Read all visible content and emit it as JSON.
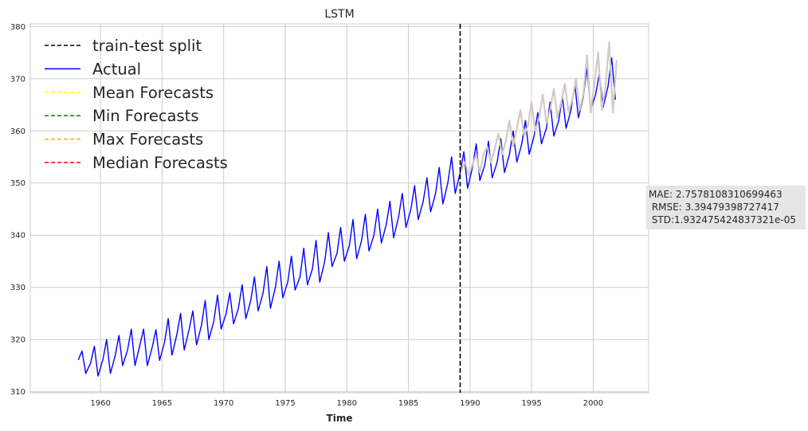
{
  "chart_data": {
    "type": "line",
    "title": "LSTM",
    "xlabel": "Time",
    "ylabel": "",
    "xlim": [
      1954.3,
      2004.5
    ],
    "ylim": [
      309.8,
      380.5
    ],
    "xticks": [
      "1960",
      "1965",
      "1970",
      "1975",
      "1980",
      "1985",
      "1990",
      "1995",
      "2000"
    ],
    "yticks": [
      "310",
      "320",
      "330",
      "340",
      "350",
      "360",
      "370",
      "380"
    ],
    "grid": true,
    "legend_position": "top-left",
    "legend": [
      {
        "label": "train-test split",
        "color": "#000000",
        "style": "dashed"
      },
      {
        "label": "Actual",
        "color": "#0000ff",
        "style": "solid"
      },
      {
        "label": "Mean Forecasts",
        "color": "#ffff00",
        "style": "dashed"
      },
      {
        "label": "Min Forecasts",
        "color": "#008000",
        "style": "dashed"
      },
      {
        "label": "Max Forecasts",
        "color": "#ffa500",
        "style": "dashed"
      },
      {
        "label": "Median Forecasts",
        "color": "#ff0000",
        "style": "dashed"
      }
    ],
    "split_x": 1989.2,
    "series": [
      {
        "name": "Actual",
        "color": "#0000ff",
        "x": [
          1958.2,
          1958.5,
          1958.8,
          1959.2,
          1959.5,
          1959.8,
          1960.2,
          1960.5,
          1960.8,
          1961.2,
          1961.5,
          1961.8,
          1962.2,
          1962.5,
          1962.8,
          1963.2,
          1963.5,
          1963.8,
          1964.2,
          1964.5,
          1964.8,
          1965.2,
          1965.5,
          1965.8,
          1966.2,
          1966.5,
          1966.8,
          1967.2,
          1967.5,
          1967.8,
          1968.2,
          1968.5,
          1968.8,
          1969.2,
          1969.5,
          1969.8,
          1970.2,
          1970.5,
          1970.8,
          1971.2,
          1971.5,
          1971.8,
          1972.2,
          1972.5,
          1972.8,
          1973.2,
          1973.5,
          1973.8,
          1974.2,
          1974.5,
          1974.8,
          1975.2,
          1975.5,
          1975.8,
          1976.2,
          1976.5,
          1976.8,
          1977.2,
          1977.5,
          1977.8,
          1978.2,
          1978.5,
          1978.8,
          1979.2,
          1979.5,
          1979.8,
          1980.2,
          1980.5,
          1980.8,
          1981.2,
          1981.5,
          1981.8,
          1982.2,
          1982.5,
          1982.8,
          1983.2,
          1983.5,
          1983.8,
          1984.2,
          1984.5,
          1984.8,
          1985.2,
          1985.5,
          1985.8,
          1986.2,
          1986.5,
          1986.8,
          1987.2,
          1987.5,
          1987.8,
          1988.2,
          1988.5,
          1988.8,
          1989.2,
          1989.5,
          1989.8,
          1990.2,
          1990.5,
          1990.8,
          1991.2,
          1991.5,
          1991.8,
          1992.2,
          1992.5,
          1992.8,
          1993.2,
          1993.5,
          1993.8,
          1994.2,
          1994.5,
          1994.8,
          1995.2,
          1995.5,
          1995.8,
          1996.2,
          1996.5,
          1996.8,
          1997.2,
          1997.5,
          1997.8,
          1998.2,
          1998.5,
          1998.8,
          1999.2,
          1999.5,
          1999.8,
          2000.2,
          2000.5,
          2000.8,
          2001.2,
          2001.5,
          2001.8
        ],
        "values": [
          316.1,
          317.8,
          313.5,
          315.5,
          318.7,
          313.0,
          316.2,
          320.0,
          313.5,
          317.0,
          320.8,
          315.0,
          318.0,
          322.0,
          315.0,
          319.0,
          322.0,
          315.0,
          318.5,
          321.9,
          316.0,
          319.5,
          324.0,
          317.0,
          321.0,
          325.0,
          318.0,
          322.0,
          325.5,
          319.0,
          322.8,
          327.5,
          320.0,
          323.5,
          328.5,
          322.0,
          325.0,
          329.0,
          323.0,
          326.0,
          330.5,
          324.0,
          327.5,
          332.0,
          325.5,
          329.0,
          334.0,
          326.0,
          330.0,
          335.0,
          328.0,
          331.0,
          336.0,
          329.5,
          332.0,
          337.5,
          330.5,
          333.5,
          339.0,
          331.0,
          335.0,
          340.5,
          334.0,
          336.5,
          341.5,
          335.0,
          338.0,
          343.0,
          335.5,
          339.0,
          344.0,
          337.0,
          340.0,
          345.0,
          338.5,
          342.0,
          346.5,
          339.5,
          343.5,
          348.0,
          341.5,
          345.0,
          349.5,
          343.0,
          346.5,
          351.0,
          344.5,
          348.0,
          353.0,
          346.0,
          350.0,
          355.0,
          348.0,
          352.0,
          356.0,
          349.0,
          353.0,
          357.5,
          350.5,
          353.5,
          358.0,
          351.0,
          354.0,
          358.5,
          352.0,
          355.5,
          360.0,
          354.0,
          357.5,
          362.0,
          355.5,
          359.0,
          363.5,
          357.5,
          360.5,
          365.5,
          359.0,
          362.0,
          366.5,
          360.5,
          364.0,
          369.0,
          362.5,
          366.5,
          372.0,
          364.0,
          367.0,
          371.0,
          364.5,
          368.5,
          374.0,
          366.0
        ]
      },
      {
        "name": "Forecasts",
        "color": "#d3c9c6",
        "x": [
          1989.3,
          1989.6,
          1989.9,
          1990.2,
          1990.5,
          1990.8,
          1991.1,
          1991.4,
          1991.7,
          1992.0,
          1992.3,
          1992.6,
          1992.9,
          1993.2,
          1993.5,
          1993.8,
          1994.1,
          1994.4,
          1994.7,
          1995.0,
          1995.3,
          1995.6,
          1995.9,
          1996.2,
          1996.5,
          1996.8,
          1997.1,
          1997.4,
          1997.7,
          1998.0,
          1998.3,
          1998.6,
          1998.9,
          1999.2,
          1999.5,
          1999.8,
          2000.1,
          2000.4,
          2000.7,
          2001.0,
          2001.3,
          2001.6,
          2001.9
        ],
        "values": [
          352.5,
          354.0,
          351.5,
          353.5,
          355.5,
          352.0,
          355.5,
          357.0,
          354.0,
          356.5,
          359.5,
          355.5,
          358.0,
          362.0,
          357.0,
          360.5,
          364.0,
          359.0,
          361.0,
          365.5,
          360.0,
          362.5,
          367.0,
          361.5,
          364.0,
          368.0,
          362.5,
          365.5,
          369.0,
          363.5,
          366.0,
          370.0,
          364.0,
          367.0,
          374.5,
          363.5,
          369.0,
          375.0,
          364.0,
          368.5,
          377.0,
          363.5,
          373.5
        ]
      }
    ],
    "annotation": "MAE: 2.7578108310699463\n RMSE: 3.39479398727417\n STD:1.932475424837321e-05"
  }
}
